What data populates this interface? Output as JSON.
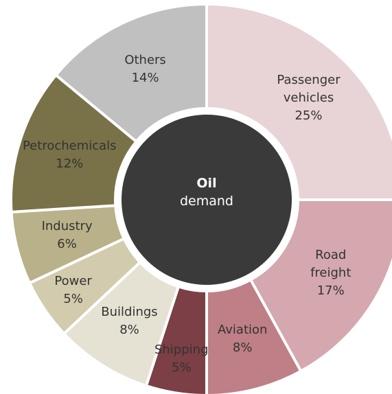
{
  "chart_data": {
    "type": "donut",
    "center_title": "Oil",
    "center_subtitle": "demand",
    "categories": [
      "Passenger vehicles",
      "Road freight",
      "Aviation",
      "Shipping",
      "Buildings",
      "Power",
      "Industry",
      "Petrochemicals",
      "Others"
    ],
    "values": [
      25,
      17,
      8,
      5,
      8,
      5,
      6,
      12,
      14
    ],
    "value_labels": [
      "25%",
      "17%",
      "8%",
      "5%",
      "8%",
      "5%",
      "6%",
      "12%",
      "14%"
    ],
    "colors": [
      "#e8d3d6",
      "#d4a8ae",
      "#bf7f86",
      "#7b3f45",
      "#e6e2d3",
      "#d2cbad",
      "#b9b189",
      "#797148",
      "#c0c0c0"
    ]
  }
}
